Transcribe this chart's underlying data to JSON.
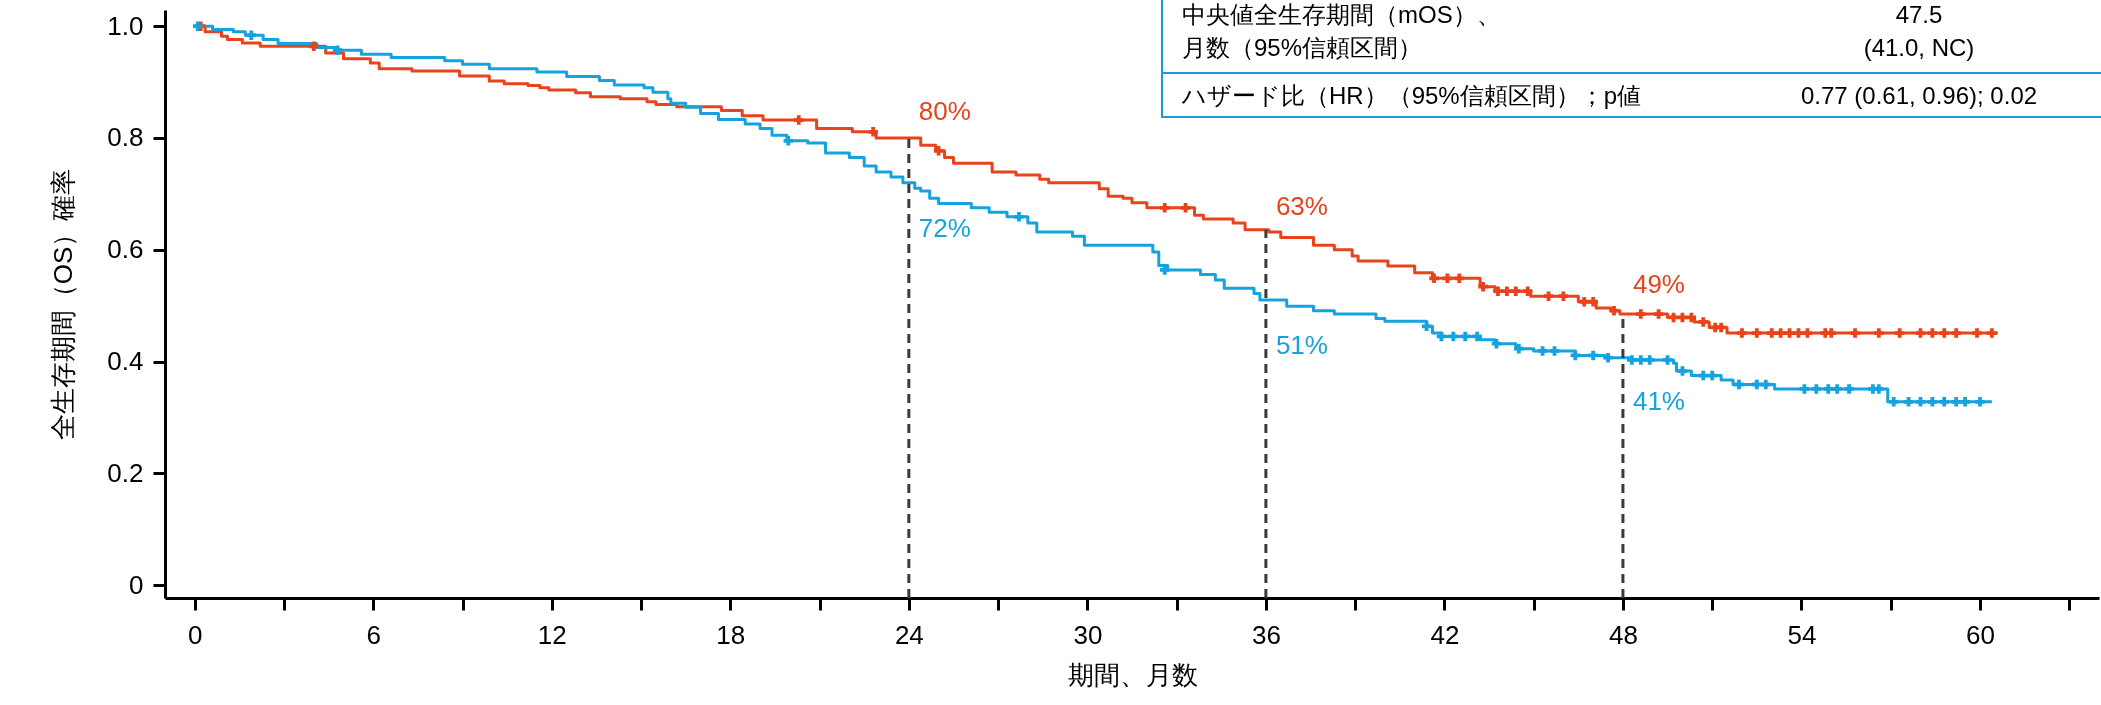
{
  "chart_data": {
    "type": "step",
    "xlabel": "期間、月数",
    "ylabel": "全生存期間（OS）確率",
    "xlim": [
      -1,
      64
    ],
    "ylim": [
      -0.023,
      1.029
    ],
    "xticks": [
      0,
      {
        "value": 3,
        "label": null
      },
      6,
      {
        "value": 9,
        "label": null
      },
      12,
      {
        "value": 15,
        "label": null
      },
      18,
      {
        "value": 21,
        "label": null
      },
      24,
      {
        "value": 27,
        "label": null
      },
      30,
      {
        "value": 33,
        "label": null
      },
      36,
      {
        "value": 39,
        "label": null
      },
      42,
      {
        "value": 45,
        "label": null
      },
      48,
      {
        "value": 51,
        "label": null
      },
      54,
      {
        "value": 57,
        "label": null
      },
      60,
      {
        "value": 63,
        "label": null
      }
    ],
    "yticks": [
      0,
      0.2,
      0.4,
      0.6,
      0.8,
      {
        "value": 1,
        "label": "1.0"
      }
    ],
    "series": [
      {
        "type": "step",
        "color": "#e8431b",
        "x": [
          0,
          0.35,
          0.9,
          1.1,
          1.6,
          2.2,
          4.4,
          5.0,
          5.9,
          6.2,
          7.3,
          8.9,
          9.9,
          10.4,
          11.2,
          11.6,
          11.9,
          12.8,
          13.3,
          14.3,
          15.2,
          15.5,
          16.2,
          17.7,
          18.4,
          19.1,
          20.9,
          22.1,
          22.9,
          24.4,
          24.9,
          25.2,
          25.5,
          26.8,
          27.6,
          28.4,
          28.7,
          30.4,
          30.7,
          31.2,
          31.5,
          32.0,
          33.6,
          33.9,
          34.9,
          35.3,
          36.1,
          36.5,
          37.6,
          38.3,
          38.9,
          39.1,
          40.1,
          41.0,
          41.6,
          43.2,
          43.7,
          44.9,
          46.5,
          47.1,
          47.6,
          47.9,
          49.5,
          50.4,
          50.9,
          51.5,
          60.6
        ],
        "values": [
          1.0,
          0.99,
          0.982,
          0.976,
          0.97,
          0.964,
          0.952,
          0.942,
          0.934,
          0.924,
          0.92,
          0.911,
          0.902,
          0.897,
          0.894,
          0.89,
          0.886,
          0.881,
          0.874,
          0.87,
          0.865,
          0.86,
          0.856,
          0.849,
          0.84,
          0.832,
          0.817,
          0.811,
          0.8,
          0.787,
          0.777,
          0.765,
          0.755,
          0.739,
          0.734,
          0.726,
          0.72,
          0.709,
          0.696,
          0.692,
          0.684,
          0.675,
          0.662,
          0.655,
          0.648,
          0.636,
          0.632,
          0.622,
          0.608,
          0.6,
          0.589,
          0.58,
          0.571,
          0.559,
          0.549,
          0.534,
          0.526,
          0.517,
          0.507,
          0.496,
          0.491,
          0.485,
          0.479,
          0.471,
          0.461,
          0.451,
          0.451
        ]
      },
      {
        "type": "step",
        "color": "#14a3de",
        "x": [
          0,
          0.6,
          1.3,
          1.7,
          2.3,
          2.8,
          4.1,
          4.8,
          5.6,
          6.6,
          8.4,
          9.0,
          9.9,
          11.5,
          12.5,
          13.6,
          14.1,
          15.1,
          15.4,
          15.9,
          16.0,
          16.5,
          17.0,
          17.6,
          18.5,
          19.0,
          19.4,
          19.9,
          20.6,
          21.2,
          22.0,
          22.5,
          22.9,
          23.4,
          23.8,
          24.2,
          24.4,
          24.7,
          25.0,
          26.1,
          26.7,
          27.3,
          28.0,
          28.3,
          29.5,
          29.9,
          32.2,
          32.4,
          32.7,
          33.8,
          34.3,
          34.6,
          35.6,
          35.8,
          36.7,
          37.6,
          38.3,
          39.7,
          40.0,
          41.4,
          41.6,
          41.9,
          43.2,
          43.7,
          44.4,
          45.0,
          46.4,
          47.4,
          48.2,
          49.7,
          49.8,
          50.3,
          51.3,
          51.7,
          53.1,
          56.9,
          60.4
        ],
        "values": [
          1.0,
          0.994,
          0.99,
          0.984,
          0.976,
          0.969,
          0.962,
          0.957,
          0.95,
          0.944,
          0.938,
          0.932,
          0.924,
          0.918,
          0.91,
          0.903,
          0.895,
          0.89,
          0.882,
          0.87,
          0.862,
          0.855,
          0.844,
          0.833,
          0.825,
          0.817,
          0.805,
          0.795,
          0.791,
          0.773,
          0.765,
          0.75,
          0.739,
          0.73,
          0.72,
          0.71,
          0.705,
          0.692,
          0.683,
          0.675,
          0.667,
          0.659,
          0.648,
          0.632,
          0.624,
          0.608,
          0.596,
          0.572,
          0.564,
          0.556,
          0.546,
          0.531,
          0.522,
          0.51,
          0.499,
          0.491,
          0.485,
          0.477,
          0.472,
          0.463,
          0.451,
          0.445,
          0.439,
          0.432,
          0.423,
          0.419,
          0.411,
          0.407,
          0.403,
          0.397,
          0.383,
          0.375,
          0.367,
          0.359,
          0.351,
          0.328,
          0.328
        ]
      },
      {
        "type": "scatter",
        "marker": "cross",
        "color": "#e8431b",
        "x": [
          0.2,
          4.0,
          20.3,
          22.8,
          25.0,
          32.6,
          33.3,
          41.65,
          42.1,
          42.5,
          43.3,
          43.8,
          44.1,
          44.4,
          44.8,
          45.5,
          46.0,
          46.7,
          47.0,
          47.7,
          48.6,
          49.2,
          49.7,
          50.0,
          50.3,
          50.7,
          51.1,
          51.3,
          52.0,
          52.5,
          53.0,
          53.3,
          53.6,
          53.9,
          54.2,
          54.8,
          55.0,
          55.8,
          56.6,
          57.3,
          58.0,
          58.4,
          58.8,
          59.2,
          59.9,
          60.4
        ],
        "values": [
          1.0,
          0.964,
          0.832,
          0.811,
          0.777,
          0.675,
          0.675,
          0.549,
          0.549,
          0.549,
          0.534,
          0.526,
          0.526,
          0.526,
          0.526,
          0.517,
          0.517,
          0.507,
          0.507,
          0.491,
          0.485,
          0.485,
          0.479,
          0.479,
          0.479,
          0.471,
          0.461,
          0.461,
          0.451,
          0.451,
          0.451,
          0.451,
          0.451,
          0.451,
          0.451,
          0.451,
          0.451,
          0.451,
          0.451,
          0.451,
          0.451,
          0.451,
          0.451,
          0.451,
          0.451,
          0.451
        ]
      },
      {
        "type": "scatter",
        "marker": "cross",
        "color": "#14a3de",
        "x": [
          0.1,
          1.9,
          4.8,
          19.95,
          27.7,
          32.6,
          41.4,
          41.9,
          42.3,
          42.7,
          43.1,
          43.75,
          44.5,
          45.3,
          45.7,
          46.4,
          47.0,
          47.5,
          48.3,
          48.6,
          48.9,
          49.5,
          50.0,
          50.7,
          51.0,
          51.9,
          52.5,
          52.8,
          54.1,
          54.5,
          54.9,
          55.2,
          55.6,
          56.4,
          56.6,
          57.1,
          57.6,
          58.0,
          58.4,
          58.8,
          59.2,
          59.5,
          60.0
        ],
        "values": [
          1.0,
          0.984,
          0.957,
          0.795,
          0.659,
          0.564,
          0.463,
          0.445,
          0.445,
          0.445,
          0.445,
          0.432,
          0.423,
          0.419,
          0.419,
          0.411,
          0.411,
          0.407,
          0.403,
          0.403,
          0.403,
          0.403,
          0.383,
          0.375,
          0.375,
          0.359,
          0.359,
          0.359,
          0.351,
          0.351,
          0.351,
          0.351,
          0.351,
          0.351,
          0.351,
          0.328,
          0.328,
          0.328,
          0.328,
          0.328,
          0.328,
          0.328,
          0.328
        ]
      }
    ],
    "ref_lines": [
      {
        "axis": "x",
        "value": 24,
        "color": "#3a3a3a",
        "line_style": "dashed"
      },
      {
        "axis": "x",
        "value": 36,
        "color": "#3a3a3a",
        "line_style": "dashed"
      },
      {
        "axis": "x",
        "value": 48,
        "color": "#3a3a3a",
        "line_style": "dashed"
      }
    ],
    "annotations": [
      "中央値全生存期間（mOS）、",
      "月数（95%信頼区間）",
      "47.5",
      "(41.0, NC)",
      "ハザード比（HR）（95%信頼区間）；p値",
      "0.77 (0.61, 0.96); 0.02",
      {
        "text": "80%",
        "x": 24,
        "y": 0.8
      },
      {
        "text": "72%",
        "x": 24,
        "y": 0.72
      },
      {
        "text": "63%",
        "x": 36,
        "y": 0.63
      },
      {
        "text": "51%",
        "x": 36,
        "y": 0.51
      },
      {
        "text": "49%",
        "x": 48,
        "y": 0.49
      },
      {
        "text": "41%",
        "x": 48,
        "y": 0.41
      }
    ]
  }
}
